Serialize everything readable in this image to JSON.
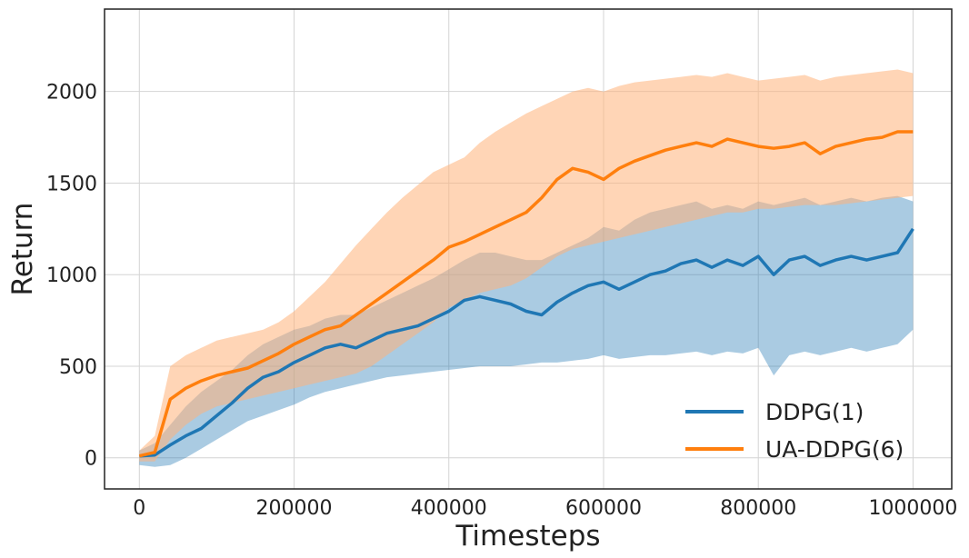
{
  "chart_data": {
    "type": "line",
    "title": "",
    "xlabel": "Timesteps",
    "ylabel": "Return",
    "xlim": [
      -45000,
      1050000
    ],
    "ylim": [
      -170,
      2450
    ],
    "xticks": [
      0,
      200000,
      400000,
      600000,
      800000,
      1000000
    ],
    "xtick_labels": [
      "0",
      "200000",
      "400000",
      "600000",
      "800000",
      "1000000"
    ],
    "yticks": [
      0,
      500,
      1000,
      1500,
      2000
    ],
    "ytick_labels": [
      "0",
      "500",
      "1000",
      "1500",
      "2000"
    ],
    "grid": true,
    "legend_position": "lower-right",
    "series": [
      {
        "name": "DDPG(1)",
        "color": "#1f77b4",
        "band_color": "#1f77b4",
        "x": [
          0,
          20000,
          40000,
          60000,
          80000,
          100000,
          120000,
          140000,
          160000,
          180000,
          200000,
          220000,
          240000,
          260000,
          280000,
          300000,
          320000,
          340000,
          360000,
          380000,
          400000,
          420000,
          440000,
          460000,
          480000,
          500000,
          520000,
          540000,
          560000,
          580000,
          600000,
          620000,
          640000,
          660000,
          680000,
          700000,
          720000,
          740000,
          760000,
          780000,
          800000,
          820000,
          840000,
          860000,
          880000,
          900000,
          920000,
          940000,
          960000,
          980000,
          1000000
        ],
        "y": [
          10,
          15,
          70,
          120,
          160,
          230,
          300,
          380,
          440,
          470,
          520,
          560,
          600,
          620,
          600,
          640,
          680,
          700,
          720,
          760,
          800,
          860,
          880,
          860,
          840,
          800,
          780,
          850,
          900,
          940,
          960,
          920,
          960,
          1000,
          1020,
          1060,
          1080,
          1040,
          1080,
          1050,
          1100,
          1000,
          1080,
          1100,
          1050,
          1080,
          1100,
          1080,
          1100,
          1120,
          1250
        ],
        "lower": [
          -40,
          -50,
          -40,
          0,
          50,
          100,
          150,
          200,
          230,
          260,
          290,
          330,
          360,
          380,
          400,
          420,
          440,
          450,
          460,
          470,
          480,
          490,
          500,
          500,
          500,
          510,
          520,
          520,
          530,
          540,
          560,
          540,
          550,
          560,
          560,
          570,
          580,
          560,
          580,
          570,
          600,
          450,
          560,
          580,
          560,
          580,
          600,
          580,
          600,
          620,
          700
        ],
        "upper": [
          40,
          80,
          180,
          280,
          360,
          420,
          480,
          560,
          620,
          660,
          700,
          720,
          760,
          780,
          780,
          820,
          860,
          900,
          940,
          980,
          1030,
          1080,
          1120,
          1120,
          1100,
          1080,
          1080,
          1120,
          1160,
          1200,
          1260,
          1240,
          1300,
          1340,
          1360,
          1380,
          1400,
          1360,
          1380,
          1360,
          1400,
          1380,
          1400,
          1420,
          1380,
          1400,
          1420,
          1400,
          1420,
          1430,
          1400
        ]
      },
      {
        "name": "UA-DDPG(6)",
        "color": "#ff7f0e",
        "band_color": "#ffb27a",
        "x": [
          0,
          20000,
          40000,
          60000,
          80000,
          100000,
          120000,
          140000,
          160000,
          180000,
          200000,
          220000,
          240000,
          260000,
          280000,
          300000,
          320000,
          340000,
          360000,
          380000,
          400000,
          420000,
          440000,
          460000,
          480000,
          500000,
          520000,
          540000,
          560000,
          580000,
          600000,
          620000,
          640000,
          660000,
          680000,
          700000,
          720000,
          740000,
          760000,
          780000,
          800000,
          820000,
          840000,
          860000,
          880000,
          900000,
          920000,
          940000,
          960000,
          980000,
          1000000
        ],
        "y": [
          10,
          30,
          320,
          380,
          420,
          450,
          470,
          490,
          530,
          570,
          620,
          660,
          700,
          720,
          780,
          840,
          900,
          960,
          1020,
          1080,
          1150,
          1180,
          1220,
          1260,
          1300,
          1340,
          1420,
          1520,
          1580,
          1560,
          1520,
          1580,
          1620,
          1650,
          1680,
          1700,
          1720,
          1700,
          1740,
          1720,
          1700,
          1690,
          1700,
          1720,
          1660,
          1700,
          1720,
          1740,
          1750,
          1780,
          1780
        ],
        "lower": [
          -20,
          -20,
          100,
          180,
          240,
          280,
          300,
          320,
          340,
          360,
          380,
          400,
          420,
          440,
          460,
          500,
          560,
          620,
          680,
          740,
          820,
          860,
          900,
          920,
          940,
          980,
          1040,
          1100,
          1140,
          1160,
          1180,
          1200,
          1220,
          1240,
          1260,
          1280,
          1300,
          1320,
          1340,
          1340,
          1360,
          1360,
          1370,
          1380,
          1380,
          1380,
          1390,
          1400,
          1410,
          1420,
          1430
        ],
        "upper": [
          40,
          120,
          500,
          560,
          600,
          640,
          660,
          680,
          700,
          740,
          800,
          880,
          960,
          1060,
          1160,
          1250,
          1340,
          1420,
          1490,
          1560,
          1600,
          1640,
          1720,
          1780,
          1830,
          1880,
          1920,
          1960,
          2000,
          2020,
          2000,
          2030,
          2050,
          2060,
          2070,
          2080,
          2090,
          2080,
          2100,
          2080,
          2060,
          2070,
          2080,
          2090,
          2060,
          2080,
          2090,
          2100,
          2110,
          2120,
          2100
        ]
      }
    ]
  }
}
